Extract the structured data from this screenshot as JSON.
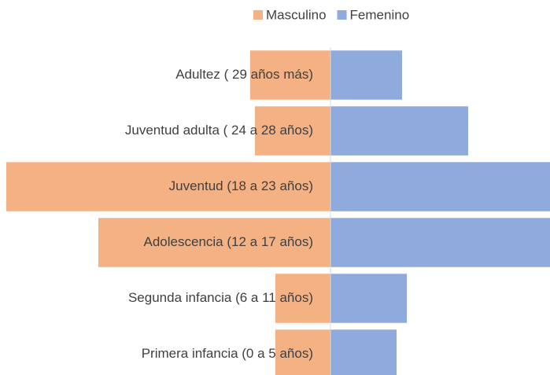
{
  "chart_data": {
    "type": "bar",
    "orientation": "horizontal",
    "stacking": "diverging",
    "categories": [
      "Adultez ( 29 años más)",
      "Juventud adulta ( 24 a 28 años)",
      "Juventud (18 a 23 años)",
      "Adolescencia (12 a 17 años)",
      "Segunda infancia (6 a 11 años)",
      "Primera infancia (0 a 5 años)"
    ],
    "series": [
      {
        "name": "Masculino",
        "color": "#f4b183",
        "values": [
          -102,
          -96,
          -412,
          -295,
          -70,
          -70
        ]
      },
      {
        "name": "Femenino",
        "color": "#8faadc",
        "values": [
          91,
          175,
          279,
          279,
          97,
          84
        ]
      }
    ],
    "xlim": [
      -420,
      279
    ],
    "legend": "top"
  }
}
